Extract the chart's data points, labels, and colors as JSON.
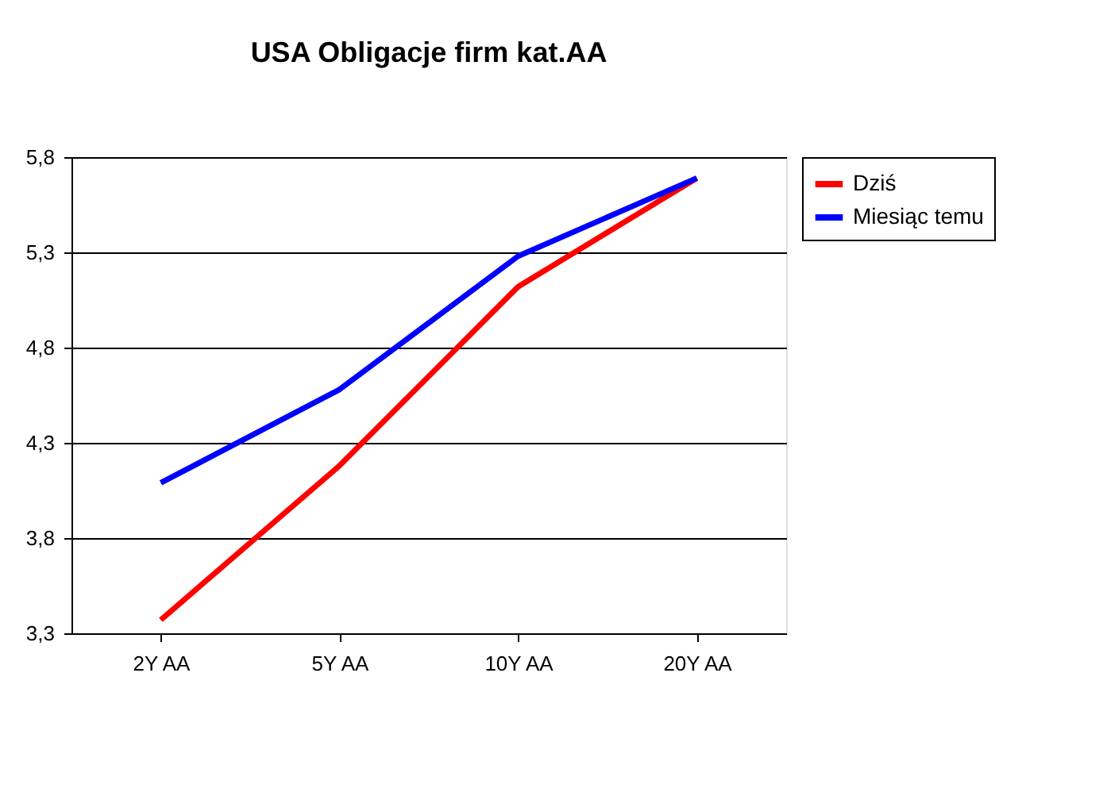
{
  "chart_data": {
    "type": "line",
    "title": "USA Obligacje firm kat.AA",
    "categories": [
      "2Y AA",
      "5Y AA",
      "10Y AA",
      "20Y AA"
    ],
    "series": [
      {
        "name": "Dziś",
        "color": "#ff0000",
        "values": [
          3.37,
          4.18,
          5.12,
          5.69
        ]
      },
      {
        "name": "Miesiąc temu",
        "color": "#0000ff",
        "values": [
          4.09,
          4.58,
          5.28,
          5.69
        ]
      }
    ],
    "ylim": [
      3.3,
      5.8
    ],
    "yticks": [
      {
        "value": 3.3,
        "label": "3,3"
      },
      {
        "value": 3.8,
        "label": "3,8"
      },
      {
        "value": 4.3,
        "label": "4,3"
      },
      {
        "value": 4.8,
        "label": "4,8"
      },
      {
        "value": 5.3,
        "label": "5,3"
      },
      {
        "value": 5.8,
        "label": "5,8"
      }
    ],
    "grid": "y",
    "legend": "right",
    "marker": "none",
    "line_style": "solid"
  }
}
